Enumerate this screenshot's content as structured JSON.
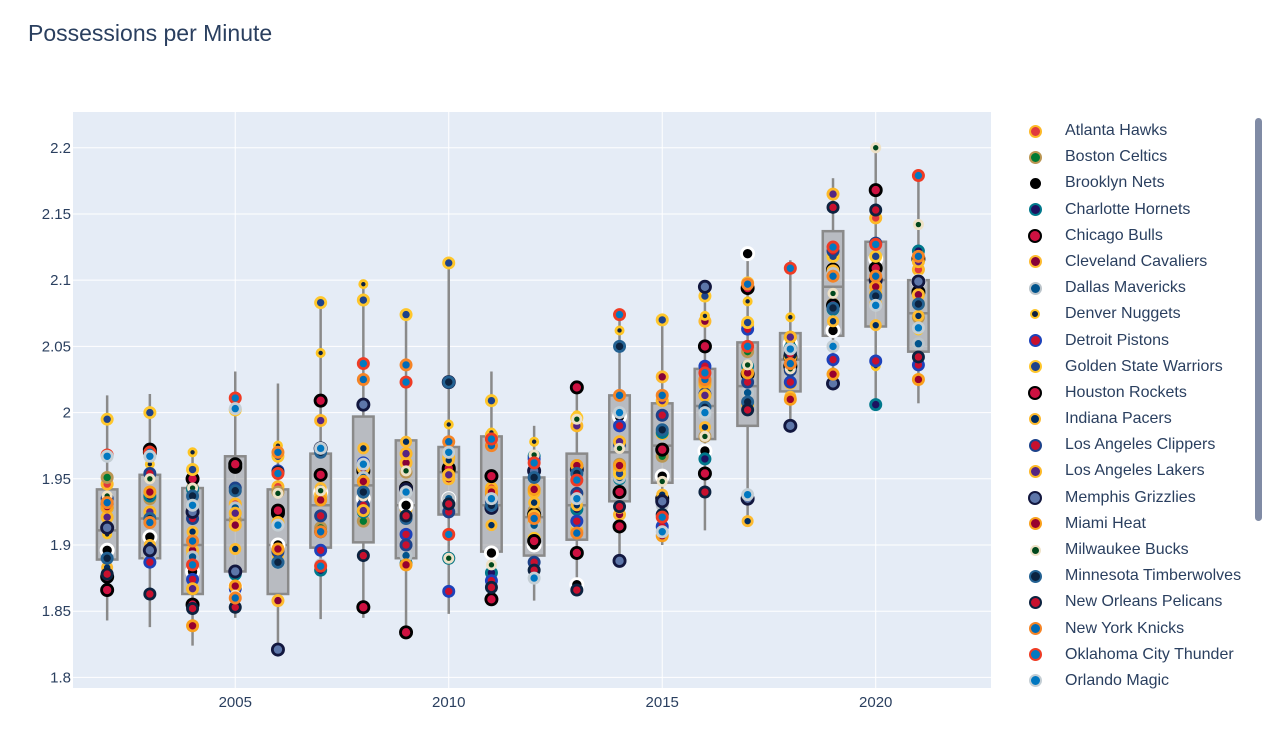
{
  "title": "Possessions per Minute",
  "chart_data": {
    "type": "box",
    "title": "Possessions per Minute",
    "xlabel": "",
    "ylabel": "",
    "xlim": [
      2001.2,
      2022.7
    ],
    "ylim": [
      1.792,
      2.227
    ],
    "x_ticks": [
      2005,
      2010,
      2015,
      2020
    ],
    "y_ticks": [
      1.8,
      1.85,
      1.9,
      1.95,
      2,
      2.05,
      2.1,
      2.15,
      2.2
    ],
    "y_tick_labels": [
      "1.8",
      "1.85",
      "1.9",
      "1.95",
      "2",
      "2.05",
      "2.1",
      "2.15",
      "2.2"
    ],
    "legend_placement": "right",
    "grid": true,
    "boxes": [
      {
        "x": 2002,
        "min": 1.843,
        "q1": 1.889,
        "median": 1.911,
        "q3": 1.942,
        "max": 2.013
      },
      {
        "x": 2003,
        "min": 1.838,
        "q1": 1.89,
        "median": 1.92,
        "q3": 1.953,
        "max": 2.014
      },
      {
        "x": 2004,
        "min": 1.824,
        "q1": 1.863,
        "median": 1.9,
        "q3": 1.943,
        "max": 1.973
      },
      {
        "x": 2005,
        "min": 1.845,
        "q1": 1.88,
        "median": 1.919,
        "q3": 1.967,
        "max": 2.031
      },
      {
        "x": 2006,
        "min": 1.821,
        "q1": 1.863,
        "median": 1.9,
        "q3": 1.942,
        "max": 2.022
      },
      {
        "x": 2007,
        "min": 1.844,
        "q1": 1.898,
        "median": 1.93,
        "q3": 1.969,
        "max": 2.083
      },
      {
        "x": 2008,
        "min": 1.845,
        "q1": 1.902,
        "median": 1.945,
        "q3": 1.997,
        "max": 2.098
      },
      {
        "x": 2009,
        "min": 1.834,
        "q1": 1.89,
        "median": 1.93,
        "q3": 1.979,
        "max": 2.075
      },
      {
        "x": 2010,
        "min": 1.848,
        "q1": 1.923,
        "median": 1.955,
        "q3": 1.974,
        "max": 2.113
      },
      {
        "x": 2011,
        "min": 1.858,
        "q1": 1.895,
        "median": 1.93,
        "q3": 1.982,
        "max": 2.031
      },
      {
        "x": 2012,
        "min": 1.858,
        "q1": 1.892,
        "median": 1.921,
        "q3": 1.951,
        "max": 1.99
      },
      {
        "x": 2013,
        "min": 1.865,
        "q1": 1.904,
        "median": 1.93,
        "q3": 1.969,
        "max": 2.02
      },
      {
        "x": 2014,
        "min": 1.888,
        "q1": 1.933,
        "median": 1.97,
        "q3": 2.013,
        "max": 2.074
      },
      {
        "x": 2015,
        "min": 1.9,
        "q1": 1.947,
        "median": 1.975,
        "q3": 2.007,
        "max": 2.071
      },
      {
        "x": 2016,
        "min": 1.911,
        "q1": 1.98,
        "median": 2.005,
        "q3": 2.033,
        "max": 2.096
      },
      {
        "x": 2017,
        "min": 1.918,
        "q1": 1.99,
        "median": 2.02,
        "q3": 2.053,
        "max": 2.12
      },
      {
        "x": 2018,
        "min": 1.99,
        "q1": 2.016,
        "median": 2.04,
        "q3": 2.06,
        "max": 2.115
      },
      {
        "x": 2019,
        "min": 2.022,
        "q1": 2.058,
        "median": 2.095,
        "q3": 2.137,
        "max": 2.177
      },
      {
        "x": 2020,
        "min": 2.006,
        "q1": 2.065,
        "median": 2.1,
        "q3": 2.129,
        "max": 2.2
      },
      {
        "x": 2021,
        "min": 2.007,
        "q1": 2.046,
        "median": 2.075,
        "q3": 2.1,
        "max": 2.179
      }
    ],
    "series": [
      {
        "name": "Atlanta Hawks",
        "outline": "#fdb927",
        "fill": "#e03a3e",
        "size": 13,
        "values": [
          1.946,
          1.92,
          1.892,
          1.931,
          1.944,
          1.936,
          1.951,
          1.927,
          1.966,
          1.943,
          1.917,
          1.911,
          1.957,
          1.984,
          2.021,
          2.066,
          2.032,
          2.118,
          2.147,
          2.108
        ]
      },
      {
        "name": "Boston Celtics",
        "outline": "#ba9653",
        "fill": "#007a33",
        "size": 13,
        "values": [
          1.951,
          1.935,
          1.943,
          1.919,
          1.94,
          1.913,
          1.918,
          1.955,
          1.89,
          1.938,
          1.926,
          1.96,
          1.961,
          1.967,
          1.982,
          2.046,
          2.057,
          2.082,
          2.089,
          2.072
        ]
      },
      {
        "name": "Brooklyn Nets",
        "outline": "#ffffff",
        "fill": "#000000",
        "size": 15,
        "values": [
          1.896,
          1.906,
          1.88,
          1.868,
          1.9,
          1.94,
          1.935,
          1.93,
          1.935,
          1.894,
          1.9,
          1.87,
          1.997,
          1.952,
          1.971,
          2.12,
          2.052,
          2.062,
          2.116,
          2.099
        ]
      },
      {
        "name": "Charlotte Hornets",
        "outline": "#00788c",
        "fill": "#1d1160",
        "size": 13,
        "values": [
          1.928,
          1.937,
          1.942,
          1.878,
          1.887,
          1.881,
          1.925,
          1.886,
          1.89,
          1.879,
          1.967,
          1.927,
          1.95,
          1.985,
          1.965,
          2.035,
          2.049,
          2.078,
          2.006,
          2.122
        ]
      },
      {
        "name": "Chicago Bulls",
        "outline": "#000000",
        "fill": "#ce1141",
        "size": 14,
        "values": [
          1.866,
          1.97,
          1.95,
          1.959,
          1.924,
          1.953,
          1.956,
          1.943,
          1.957,
          1.952,
          1.923,
          1.894,
          1.94,
          1.935,
          2.05,
          2.029,
          2.042,
          2.108,
          2.109,
          2.091
        ]
      },
      {
        "name": "Cleveland Cavaliers",
        "outline": "#fdbb30",
        "fill": "#860038",
        "size": 13,
        "values": [
          1.928,
          1.891,
          1.896,
          1.915,
          1.858,
          1.938,
          1.958,
          1.962,
          1.95,
          1.983,
          1.922,
          1.938,
          1.923,
          2.027,
          2.069,
          2.098,
          2.022,
          2.107,
          2.09,
          2.089
        ]
      },
      {
        "name": "Dallas Mavericks",
        "outline": "#bbc4ca",
        "fill": "#00538c",
        "size": 13,
        "values": [
          1.916,
          1.892,
          1.891,
          1.928,
          1.891,
          1.885,
          1.951,
          1.892,
          1.935,
          1.927,
          1.915,
          1.917,
          1.951,
          1.93,
          1.998,
          2.015,
          2.026,
          2.105,
          2.095,
          2.052
        ]
      },
      {
        "name": "Denver Nuggets",
        "outline": "#fec524",
        "fill": "#0e2240",
        "size": 10,
        "values": [
          1.908,
          1.961,
          1.97,
          1.94,
          1.975,
          2.045,
          2.097,
          1.899,
          1.991,
          1.985,
          1.978,
          1.998,
          2.062,
          2.011,
          2.073,
          2.084,
          2.072,
          2.118,
          2.035,
          2.062
        ]
      },
      {
        "name": "Detroit Pistons",
        "outline": "#1d42ba",
        "fill": "#c8102e",
        "size": 13,
        "values": [
          1.931,
          1.887,
          1.874,
          1.867,
          1.956,
          1.896,
          1.962,
          1.908,
          1.865,
          1.873,
          1.965,
          1.918,
          1.99,
          1.914,
          2.035,
          2.063,
          2.023,
          2.04,
          2.039,
          2.036
        ]
      },
      {
        "name": "Golden State Warriors",
        "outline": "#ffc72c",
        "fill": "#1d428a",
        "size": 13,
        "values": [
          1.995,
          2.0,
          1.957,
          2.002,
          1.967,
          2.083,
          2.085,
          2.074,
          2.113,
          2.009,
          1.905,
          1.996,
          1.954,
          2.07,
          2.088,
          2.068,
          2.042,
          2.118,
          2.118,
          2.082
        ]
      },
      {
        "name": "Houston Rockets",
        "outline": "#000000",
        "fill": "#ce1141",
        "size": 14,
        "values": [
          1.876,
          1.972,
          1.855,
          1.961,
          1.926,
          2.009,
          1.853,
          1.834,
          1.958,
          1.859,
          1.903,
          2.019,
          1.914,
          1.972,
          1.954,
          2.094,
          2.035,
          2.081,
          2.168,
          2.116
        ]
      },
      {
        "name": "Indiana Pacers",
        "outline": "#fdbb30",
        "fill": "#002d62",
        "size": 12,
        "values": [
          1.883,
          1.9,
          1.91,
          1.897,
          1.892,
          1.943,
          1.973,
          1.978,
          1.964,
          1.915,
          1.932,
          1.93,
          1.928,
          1.938,
          1.989,
          1.918,
          2.012,
          2.069,
          2.066,
          2.073
        ]
      },
      {
        "name": "Los Angeles Clippers",
        "outline": "#1d428a",
        "fill": "#c8102e",
        "size": 13,
        "values": [
          1.935,
          1.954,
          1.92,
          1.943,
          1.895,
          1.922,
          1.93,
          1.9,
          1.925,
          1.933,
          1.887,
          1.939,
          1.976,
          1.998,
          2.014,
          2.023,
          2.032,
          2.122,
          2.128,
          2.099
        ]
      },
      {
        "name": "Los Angeles Lakers",
        "outline": "#fdb927",
        "fill": "#552583",
        "size": 13,
        "values": [
          1.921,
          1.925,
          1.867,
          1.924,
          1.917,
          1.994,
          1.926,
          1.969,
          1.953,
          1.98,
          1.94,
          1.99,
          1.978,
          2.009,
          2.013,
          2.006,
          2.057,
          2.165,
          2.082,
          2.114
        ]
      },
      {
        "name": "Memphis Grizzlies",
        "outline": "#12173f",
        "fill": "#5d76a9",
        "size": 14,
        "values": [
          1.913,
          1.896,
          1.925,
          1.88,
          1.821,
          1.973,
          2.006,
          1.942,
          2.023,
          1.928,
          1.956,
          1.957,
          1.888,
          1.933,
          2.095,
          1.935,
          1.99,
          2.022,
          2.1,
          2.099
        ]
      },
      {
        "name": "Miami Heat",
        "outline": "#f9a01b",
        "fill": "#98002e",
        "size": 13,
        "values": [
          1.929,
          1.94,
          1.839,
          1.869,
          1.897,
          1.934,
          1.948,
          1.885,
          1.97,
          1.94,
          1.942,
          1.96,
          1.96,
          1.907,
          2.023,
          2.03,
          2.01,
          2.029,
          2.095,
          2.025
        ]
      },
      {
        "name": "Milwaukee Bucks",
        "outline": "#eee1c6",
        "fill": "#00471b",
        "size": 11,
        "values": [
          1.937,
          1.95,
          1.943,
          1.862,
          1.939,
          1.941,
          1.937,
          1.956,
          1.89,
          1.885,
          1.968,
          1.995,
          1.973,
          1.948,
          1.982,
          2.036,
          2.033,
          2.09,
          2.2,
          2.142
        ]
      },
      {
        "name": "Minnesota Timberwolves",
        "outline": "#236192",
        "fill": "#0c2340",
        "size": 13,
        "values": [
          1.89,
          1.92,
          1.937,
          1.941,
          1.887,
          1.97,
          1.94,
          1.92,
          2.023,
          1.93,
          1.951,
          1.954,
          2.05,
          1.987,
          2.004,
          2.008,
          2.045,
          2.079,
          2.088,
          2.082
        ]
      },
      {
        "name": "New Orleans Pelicans",
        "outline": "#0c2340",
        "fill": "#c8102e",
        "size": 13,
        "values": [
          1.878,
          1.863,
          1.852,
          1.853,
          1.955,
          1.91,
          1.892,
          1.922,
          1.931,
          1.868,
          1.881,
          1.866,
          1.929,
          1.923,
          1.94,
          2.002,
          2.044,
          2.155,
          2.153,
          2.042
        ]
      },
      {
        "name": "New York Knicks",
        "outline": "#f58426",
        "fill": "#006bb6",
        "size": 13,
        "values": [
          1.932,
          1.917,
          1.903,
          1.86,
          1.97,
          1.91,
          2.025,
          2.036,
          1.978,
          1.975,
          1.92,
          1.909,
          2.013,
          2.013,
          2.025,
          2.097,
          2.037,
          2.103,
          2.103,
          2.118
        ]
      },
      {
        "name": "Oklahoma City Thunder",
        "outline": "#ef3b24",
        "fill": "#007ac1",
        "size": 13,
        "values": [
          1.968,
          1.97,
          1.885,
          2.011,
          1.954,
          1.884,
          2.037,
          2.023,
          1.908,
          1.98,
          1.962,
          1.949,
          2.074,
          1.921,
          2.03,
          2.05,
          2.109,
          2.125,
          2.127,
          2.179
        ]
      },
      {
        "name": "Orlando Magic",
        "outline": "#c4ced4",
        "fill": "#0077c0",
        "size": 13,
        "values": [
          1.967,
          1.967,
          1.93,
          2.003,
          1.915,
          1.973,
          1.961,
          1.94,
          1.97,
          1.935,
          1.875,
          1.935,
          2.0,
          1.91,
          2.0,
          1.938,
          2.048,
          2.05,
          2.081,
          2.064
        ]
      }
    ]
  }
}
